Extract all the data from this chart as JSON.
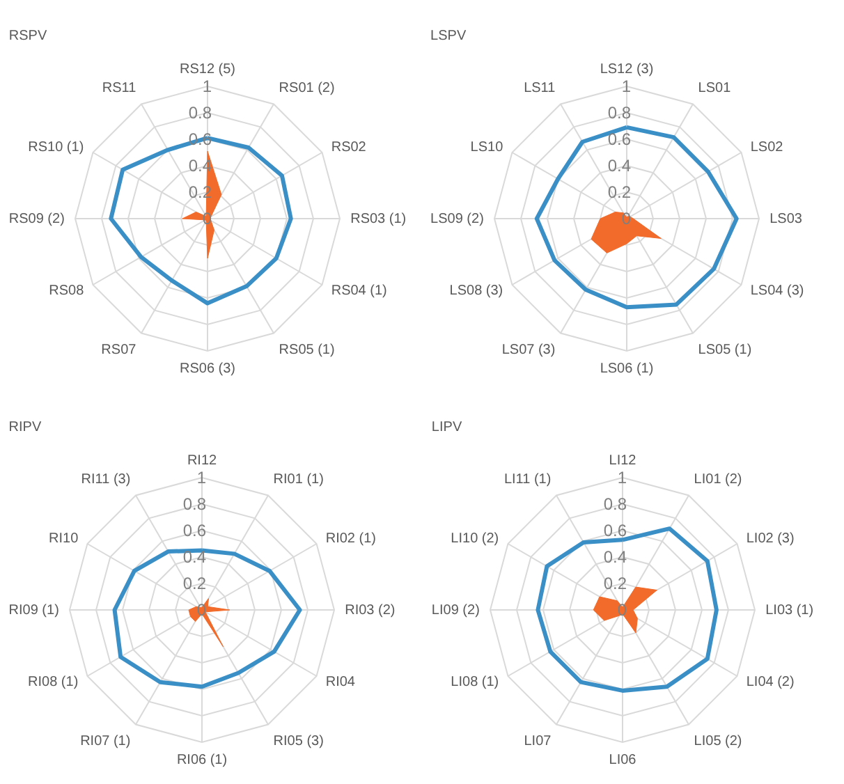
{
  "chart_data": [
    {
      "type": "radar",
      "title": "RSPV",
      "categories": [
        "RS12 (5)",
        "RS01 (2)",
        "RS02",
        "RS03 (1)",
        "RS04 (1)",
        "RS05 (1)",
        "RS06 (3)",
        "RS07",
        "RS08",
        "RS09 (2)",
        "RS10 (1)",
        "RS11"
      ],
      "ylim": [
        0,
        1
      ],
      "yticks": [
        0,
        0.2,
        0.4,
        0.6,
        0.8,
        1
      ],
      "grid": true,
      "relative": false,
      "series": [
        {
          "color": "#3a8fc7",
          "values": [
            0.61,
            0.62,
            0.65,
            0.63,
            0.6,
            0.59,
            0.64,
            0.54,
            0.58,
            0.73,
            0.74,
            0.6
          ]
        },
        {
          "type": "area",
          "color": "#f26b2a",
          "values": [
            0.51,
            0.21,
            0.03,
            0.02,
            0.03,
            0.1,
            0.3,
            0.02,
            0.02,
            0.19,
            0.1,
            0.02
          ]
        }
      ]
    },
    {
      "type": "radar",
      "title": "LSPV",
      "categories": [
        "LS12 (3)",
        "LS01",
        "LS02",
        "LS03",
        "LS04 (3)",
        "LS05 (1)",
        "LS06 (1)",
        "LS07 (3)",
        "LS08 (3)",
        "LS09 (2)",
        "LS10",
        "LS11"
      ],
      "ylim": [
        0,
        1
      ],
      "yticks": [
        0,
        0.2,
        0.4,
        0.6,
        0.8,
        1
      ],
      "grid": true,
      "series": [
        {
          "color": "#3a8fc7",
          "values": [
            0.69,
            0.71,
            0.71,
            0.83,
            0.76,
            0.75,
            0.67,
            0.62,
            0.63,
            0.68,
            0.6,
            0.67
          ]
        },
        {
          "type": "area",
          "color": "#f26b2a",
          "values": [
            0.01,
            0.02,
            0.03,
            0.05,
            0.3,
            0.15,
            0.19,
            0.3,
            0.31,
            0.2,
            0.1,
            0.05
          ]
        }
      ]
    },
    {
      "type": "radar",
      "title": "RIPV",
      "categories": [
        "RI12",
        "RI01 (1)",
        "RI02 (1)",
        "RI03 (2)",
        "RI04",
        "RI05 (3)",
        "RI06 (1)",
        "RI07 (1)",
        "RI08 (1)",
        "RI09 (1)",
        "RI10",
        "RI11 (3)"
      ],
      "ylim": [
        0,
        1
      ],
      "yticks": [
        0,
        0.2,
        0.4,
        0.6,
        0.8,
        1
      ],
      "grid": true,
      "series": [
        {
          "color": "#3a8fc7",
          "values": [
            0.45,
            0.49,
            0.59,
            0.74,
            0.63,
            0.55,
            0.58,
            0.63,
            0.71,
            0.66,
            0.59,
            0.51
          ]
        },
        {
          "type": "area",
          "color": "#f26b2a",
          "values": [
            0.02,
            0.1,
            0.05,
            0.21,
            0.03,
            0.32,
            0.03,
            0.1,
            0.1,
            0.1,
            0.05,
            0.02
          ]
        }
      ]
    },
    {
      "type": "radar",
      "title": "LIPV",
      "categories": [
        "LI12",
        "LI01 (2)",
        "LI02 (3)",
        "LI03 (1)",
        "LI04 (2)",
        "LI05 (2)",
        "LI06",
        "LI07",
        "LI08 (1)",
        "LI09 (2)",
        "LI10 (2)",
        "LI11 (1)"
      ],
      "ylim": [
        0,
        1
      ],
      "yticks": [
        0,
        0.2,
        0.4,
        0.6,
        0.8,
        1
      ],
      "grid": true,
      "series": [
        {
          "color": "#3a8fc7",
          "values": [
            0.53,
            0.71,
            0.74,
            0.71,
            0.74,
            0.67,
            0.61,
            0.63,
            0.63,
            0.64,
            0.66,
            0.59
          ]
        },
        {
          "type": "area",
          "color": "#f26b2a",
          "values": [
            0.02,
            0.2,
            0.3,
            0.08,
            0.13,
            0.2,
            0.03,
            0.05,
            0.16,
            0.22,
            0.2,
            0.08
          ]
        }
      ]
    }
  ]
}
